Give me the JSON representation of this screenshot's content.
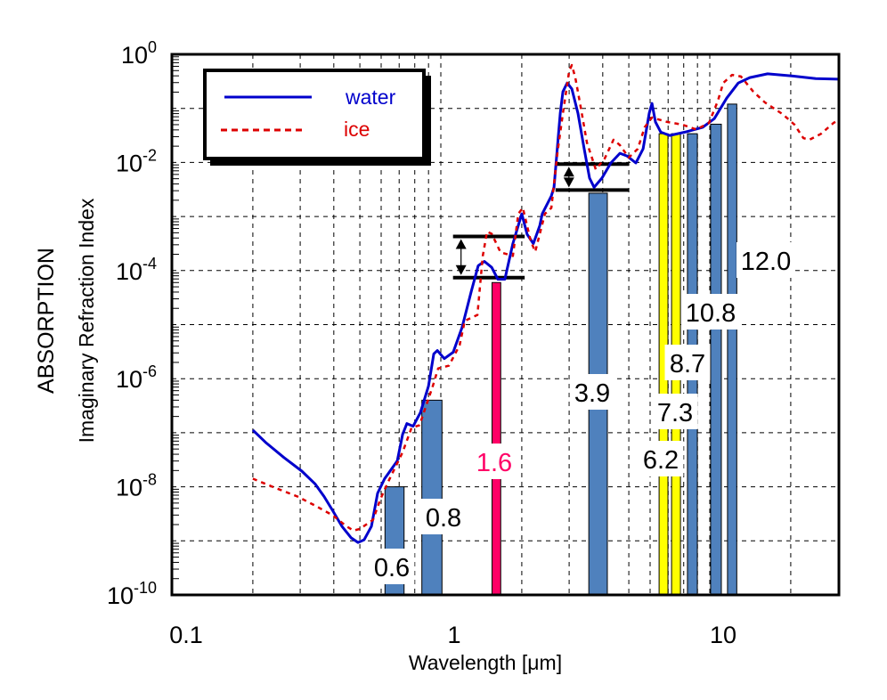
{
  "chart_data": {
    "type": "line",
    "xscale": "log",
    "yscale": "log",
    "xlabel": "Wavelength [μm]",
    "ylabel_line1": "ABSORPTION",
    "ylabel_line2": "Imaginary Refraction Index",
    "xlim": [
      0.1,
      30
    ],
    "ylim": [
      1e-10,
      1
    ],
    "x_ticks": [
      {
        "value": 0.1,
        "label": "0.1"
      },
      {
        "value": 1,
        "label": "1"
      },
      {
        "value": 10,
        "label": "10"
      }
    ],
    "y_ticks": [
      {
        "exp": 0,
        "base": "10",
        "sup": "0"
      },
      {
        "exp": -2,
        "base": "10",
        "sup": "-2"
      },
      {
        "exp": -4,
        "base": "10",
        "sup": "-4"
      },
      {
        "exp": -6,
        "base": "10",
        "sup": "-6"
      },
      {
        "exp": -8,
        "base": "10",
        "sup": "-8"
      },
      {
        "exp": -10,
        "base": "10",
        "sup": "-10"
      }
    ],
    "grid": true,
    "legend": {
      "placement": "top-left",
      "entries": [
        {
          "label": "water",
          "color": "#0000cc",
          "style": "solid"
        },
        {
          "label": "ice",
          "color": "#dd0000",
          "style": "dotted"
        }
      ]
    },
    "series": [
      {
        "name": "water",
        "color": "#0000cc",
        "log10_x": [
          -0.699,
          -0.649,
          -0.583,
          -0.517,
          -0.467,
          -0.434,
          -0.401,
          -0.368,
          -0.334,
          -0.308,
          -0.285,
          -0.258,
          -0.235,
          -0.209,
          -0.162,
          -0.142,
          -0.126,
          -0.103,
          -0.076,
          -0.046,
          -0.026,
          -0.013,
          0.013,
          0.046,
          0.079,
          0.113,
          0.139,
          0.162,
          0.189,
          0.212,
          0.238,
          0.268,
          0.301,
          0.321,
          0.344,
          0.368,
          0.377,
          0.411,
          0.421,
          0.444,
          0.454,
          0.47,
          0.487,
          0.51,
          0.533,
          0.553,
          0.57,
          0.599,
          0.632,
          0.666,
          0.692,
          0.725,
          0.752,
          0.775,
          0.785,
          0.798,
          0.818,
          0.851,
          0.907,
          0.974,
          1.017,
          1.063,
          1.106,
          1.149,
          1.215,
          1.305,
          1.394,
          1.477
        ],
        "log10_y": [
          -6.95,
          -7.19,
          -7.46,
          -7.71,
          -7.95,
          -8.18,
          -8.45,
          -8.73,
          -8.94,
          -9.03,
          -8.98,
          -8.73,
          -8.12,
          -7.85,
          -7.52,
          -7.03,
          -6.83,
          -6.88,
          -6.63,
          -6.14,
          -5.54,
          -5.48,
          -5.63,
          -5.51,
          -5.05,
          -4.39,
          -3.91,
          -3.83,
          -3.94,
          -4.16,
          -4.16,
          -3.5,
          -2.95,
          -3.33,
          -3.5,
          -3.17,
          -2.95,
          -2.62,
          -2.46,
          -1.09,
          -0.69,
          -0.53,
          -0.64,
          -1.09,
          -1.75,
          -2.29,
          -2.46,
          -2.29,
          -2.01,
          -1.83,
          -1.88,
          -2.01,
          -1.75,
          -1.09,
          -0.91,
          -1.25,
          -1.44,
          -1.5,
          -1.44,
          -1.35,
          -1.19,
          -0.81,
          -0.53,
          -0.43,
          -0.36,
          -0.4,
          -0.45,
          -0.46
        ]
      },
      {
        "name": "ice",
        "color": "#dd0000",
        "log10_x": [
          -0.699,
          -0.616,
          -0.533,
          -0.467,
          -0.401,
          -0.351,
          -0.325,
          -0.301,
          -0.278,
          -0.252,
          -0.225,
          -0.195,
          -0.142,
          -0.109,
          -0.079,
          -0.03,
          -0.01,
          0.03,
          0.07,
          0.089,
          0.136,
          0.146,
          0.156,
          0.172,
          0.189,
          0.222,
          0.268,
          0.288,
          0.305,
          0.334,
          0.351,
          0.387,
          0.411,
          0.434,
          0.454,
          0.477,
          0.487,
          0.5,
          0.52,
          0.543,
          0.576,
          0.609,
          0.642,
          0.666,
          0.699,
          0.732,
          0.758,
          0.785,
          0.841,
          0.897,
          0.95,
          0.997,
          1.03,
          1.05,
          1.083,
          1.116,
          1.162,
          1.205,
          1.272,
          1.315,
          1.348,
          1.371,
          1.414,
          1.46,
          1.477
        ],
        "log10_y": [
          -7.85,
          -8.02,
          -8.18,
          -8.35,
          -8.53,
          -8.73,
          -8.81,
          -8.78,
          -8.7,
          -8.61,
          -8.23,
          -7.9,
          -7.36,
          -6.91,
          -6.86,
          -6.14,
          -5.81,
          -5.76,
          -5.38,
          -4.93,
          -4.82,
          -4.27,
          -3.73,
          -3.28,
          -3.32,
          -3.66,
          -3.73,
          -2.95,
          -2.84,
          -3.45,
          -3.65,
          -2.95,
          -2.84,
          -1.8,
          -1.09,
          -0.31,
          -0.2,
          -0.43,
          -0.97,
          -1.63,
          -2.13,
          -1.93,
          -1.58,
          -1.68,
          -1.91,
          -1.75,
          -1.35,
          -1.17,
          -1.25,
          -1.3,
          -1.39,
          -1.27,
          -0.86,
          -0.53,
          -0.38,
          -0.41,
          -0.69,
          -0.89,
          -1.11,
          -1.3,
          -1.55,
          -1.58,
          -1.47,
          -1.27,
          -1.22
        ]
      }
    ],
    "bands": [
      {
        "label": "0.6",
        "wl_min": 0.62,
        "wl_max": 0.73,
        "top": 1e-08,
        "color": "#4f81bd",
        "label_color": "#000000"
      },
      {
        "label": "0.8",
        "wl_min": 0.85,
        "wl_max": 1.01,
        "top": 4e-07,
        "color": "#4f81bd",
        "label_color": "#000000"
      },
      {
        "label": "1.6",
        "wl_min": 1.55,
        "wl_max": 1.67,
        "top": 6e-05,
        "color": "#ff0066",
        "label_color": "#ff0066"
      },
      {
        "label": "3.9",
        "wl_min": 3.55,
        "wl_max": 4.16,
        "top": 0.0027,
        "color": "#4f81bd",
        "label_color": "#000000"
      },
      {
        "label": "6.2",
        "wl_min": 6.48,
        "wl_max": 6.99,
        "top": 0.034,
        "color": "#ffff00",
        "label_color": "#000000"
      },
      {
        "label": "7.3",
        "wl_min": 7.21,
        "wl_max": 7.78,
        "top": 0.034,
        "color": "#ffff00",
        "label_color": "#000000"
      },
      {
        "label": "8.7",
        "wl_min": 8.26,
        "wl_max": 8.99,
        "top": 0.034,
        "color": "#4f81bd",
        "label_color": "#000000"
      },
      {
        "label": "10.8",
        "wl_min": 10.07,
        "wl_max": 11.04,
        "top": 0.051,
        "color": "#4f81bd",
        "label_color": "#000000"
      },
      {
        "label": "12.0",
        "wl_min": 11.64,
        "wl_max": 12.6,
        "top": 0.12,
        "color": "#4f81bd",
        "label_color": "#000000"
      }
    ],
    "difference_markers": [
      {
        "wl_min": 1.11,
        "wl_max": 2.05,
        "upper_log10": -3.37,
        "lower_log10": -4.13
      },
      {
        "wl_min": 2.67,
        "wl_max": 5.0,
        "upper_log10": -2.03,
        "lower_log10": -2.51
      }
    ]
  }
}
